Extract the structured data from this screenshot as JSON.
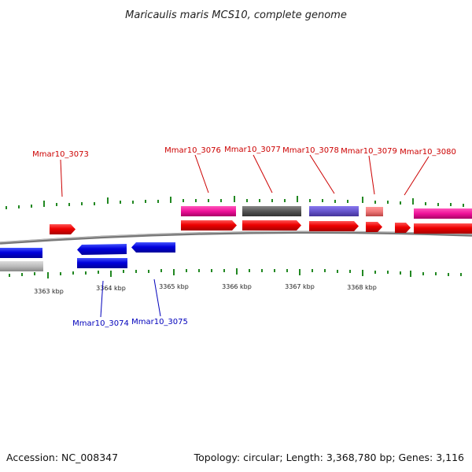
{
  "title": "Maricaulis maris MCS10, complete genome",
  "accession": "Accession: NC_008347",
  "summary": "Topology: circular; Length: 3,368,780 bp; Genes: 3,116",
  "colors": {
    "red": "#ee0000",
    "blue": "#0000dd",
    "gray_cds": "#bbbbbb",
    "magenta": "#ee1199",
    "dark_gray": "#555555",
    "slate_blue": "#6655cc",
    "salmon": "#ee7777",
    "tick_green": "#228822",
    "backbone": "#777777",
    "label_red": "#cc0000",
    "label_blue": "#0000bb"
  },
  "kbp_labels": [
    "3363 kbp",
    "3364 kbp",
    "3365 kbp",
    "3366 kbp",
    "3367 kbp",
    "3368 kbp"
  ],
  "gene_labels": {
    "g3073": "Mmar10_3073",
    "g3074": "Mmar10_3074",
    "g3075": "Mmar10_3075",
    "g3076": "Mmar10_3076",
    "g3077": "Mmar10_3077",
    "g3078": "Mmar10_3078",
    "g3079": "Mmar10_3079",
    "g3080": "Mmar10_3080"
  }
}
